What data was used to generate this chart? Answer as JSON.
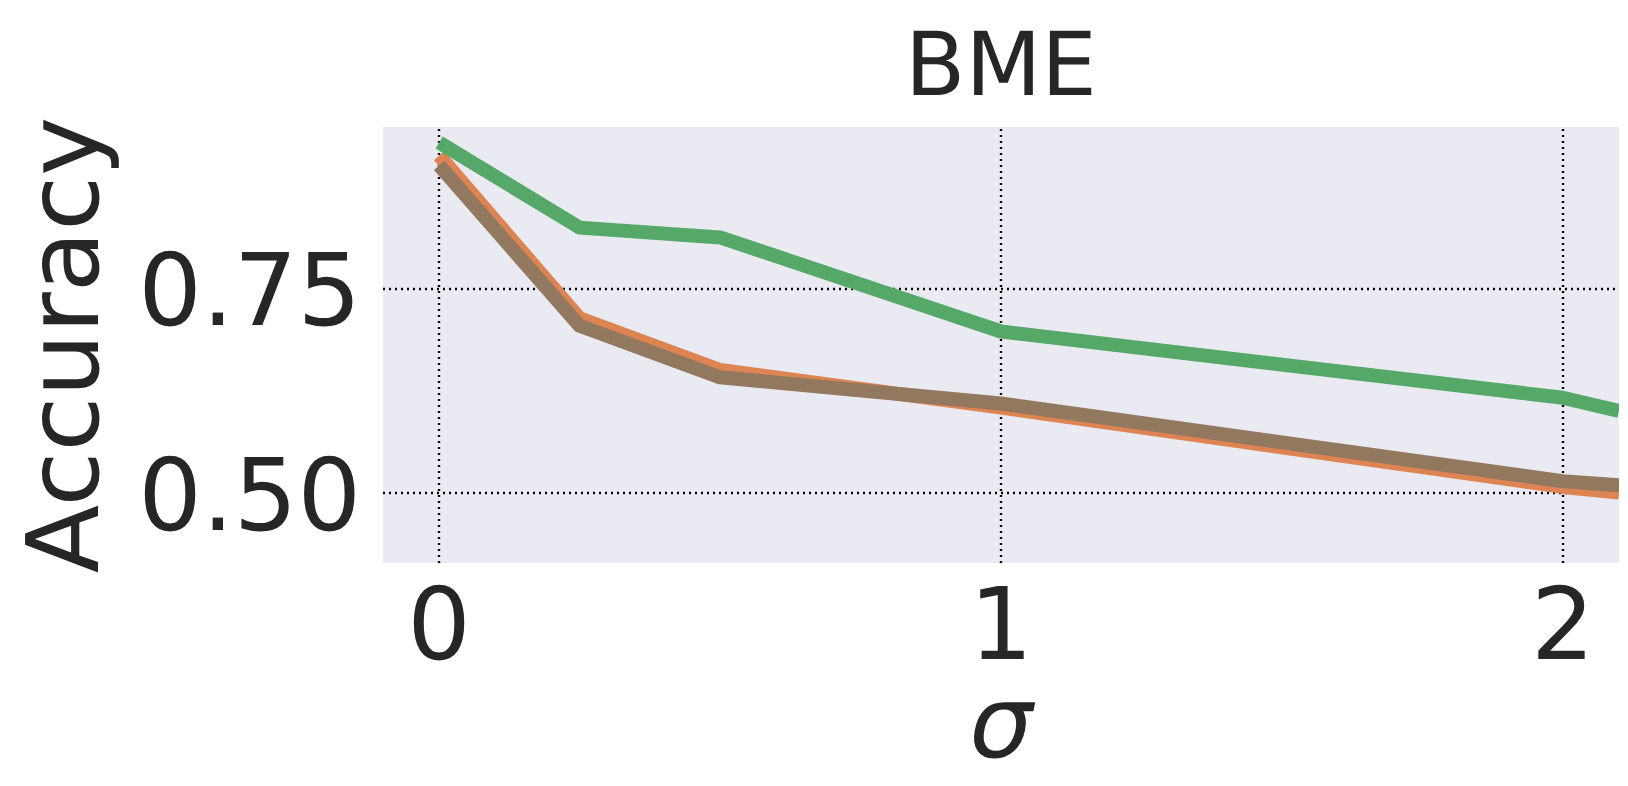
{
  "chart_data": {
    "type": "line",
    "title": "BME",
    "xlabel": "σ",
    "ylabel": "Accuracy",
    "x": [
      0,
      0.25,
      0.5,
      1,
      2,
      2.1
    ],
    "series": [
      {
        "color": "#dd8452",
        "values": [
          0.912,
          0.713,
          0.65,
          0.604,
          0.507,
          0.5
        ]
      },
      {
        "color": "#55a868",
        "values": [
          0.928,
          0.824,
          0.812,
          0.697,
          0.616,
          0.6
        ]
      },
      {
        "color": "#937860",
        "values": [
          0.9,
          0.704,
          0.641,
          0.609,
          0.514,
          0.509
        ]
      }
    ],
    "xlim": [
      -0.1,
      2.1
    ],
    "ylim": [
      0.414,
      0.947
    ],
    "xticks": [
      0,
      1,
      2
    ],
    "yticks": [
      {
        "value": 0.5,
        "label": "0.50"
      },
      {
        "value": 0.75,
        "label": "0.75"
      }
    ],
    "grid": true,
    "line_style": "solid"
  }
}
